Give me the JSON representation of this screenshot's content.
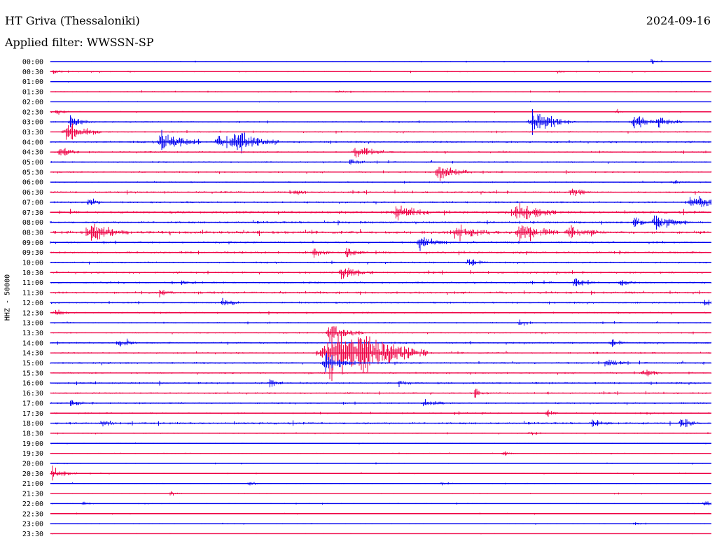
{
  "header": {
    "station": "HT Griva (Thessaloniki)",
    "date": "2024-09-16",
    "filter": "Applied filter: WWSSN-SP"
  },
  "chart_data": {
    "type": "line",
    "title": "HT Griva (Thessaloniki)",
    "subtitle": "Applied filter: WWSSN-SP",
    "ylabel": "HHZ - 50000",
    "xlabel": "",
    "colors": {
      "blue": "#0000ee",
      "red": "#ee0044"
    },
    "rows": [
      {
        "label": "00:00",
        "color": "blue",
        "activity": 0.3,
        "events": [
          [
            930,
            4
          ]
        ]
      },
      {
        "label": "00:30",
        "color": "red",
        "activity": 0.4,
        "events": [
          [
            75,
            4
          ],
          [
            795,
            3
          ]
        ]
      },
      {
        "label": "01:00",
        "color": "blue",
        "activity": 0.2,
        "events": []
      },
      {
        "label": "01:30",
        "color": "red",
        "activity": 0.4,
        "events": [
          [
            480,
            3
          ]
        ]
      },
      {
        "label": "02:00",
        "color": "blue",
        "activity": 0.2,
        "events": []
      },
      {
        "label": "02:30",
        "color": "red",
        "activity": 0.3,
        "events": [
          [
            80,
            6
          ],
          [
            880,
            4
          ]
        ]
      },
      {
        "label": "03:00",
        "color": "blue",
        "activity": 0.5,
        "events": [
          [
            100,
            10
          ],
          [
            760,
            18
          ],
          [
            905,
            12
          ],
          [
            940,
            10
          ]
        ]
      },
      {
        "label": "03:30",
        "color": "red",
        "activity": 0.5,
        "events": [
          [
            95,
            14
          ]
        ]
      },
      {
        "label": "04:00",
        "color": "blue",
        "activity": 0.7,
        "events": [
          [
            230,
            16
          ],
          [
            335,
            18
          ],
          [
            310,
            12
          ]
        ]
      },
      {
        "label": "04:30",
        "color": "red",
        "activity": 0.6,
        "events": [
          [
            85,
            8
          ],
          [
            508,
            12
          ]
        ]
      },
      {
        "label": "05:00",
        "color": "blue",
        "activity": 0.6,
        "events": [
          [
            500,
            6
          ]
        ]
      },
      {
        "label": "05:30",
        "color": "red",
        "activity": 0.6,
        "events": [
          [
            625,
            14
          ]
        ]
      },
      {
        "label": "06:00",
        "color": "blue",
        "activity": 0.5,
        "events": [
          [
            960,
            5
          ]
        ]
      },
      {
        "label": "06:30",
        "color": "red",
        "activity": 0.7,
        "events": [
          [
            415,
            7
          ],
          [
            815,
            8
          ]
        ]
      },
      {
        "label": "07:00",
        "color": "blue",
        "activity": 0.7,
        "events": [
          [
            125,
            6
          ],
          [
            985,
            14
          ]
        ]
      },
      {
        "label": "07:30",
        "color": "red",
        "activity": 0.9,
        "events": [
          [
            565,
            14
          ],
          [
            738,
            16
          ]
        ]
      },
      {
        "label": "08:00",
        "color": "blue",
        "activity": 0.8,
        "events": [
          [
            935,
            14
          ],
          [
            905,
            8
          ]
        ]
      },
      {
        "label": "08:30",
        "color": "red",
        "activity": 1.0,
        "events": [
          [
            128,
            16
          ],
          [
            650,
            14
          ],
          [
            742,
            16
          ],
          [
            812,
            12
          ]
        ]
      },
      {
        "label": "09:00",
        "color": "blue",
        "activity": 0.7,
        "events": [
          [
            598,
            12
          ]
        ]
      },
      {
        "label": "09:30",
        "color": "red",
        "activity": 0.8,
        "events": [
          [
            448,
            7
          ],
          [
            495,
            8
          ]
        ]
      },
      {
        "label": "10:00",
        "color": "blue",
        "activity": 0.6,
        "events": [
          [
            668,
            8
          ]
        ]
      },
      {
        "label": "10:30",
        "color": "red",
        "activity": 0.7,
        "events": [
          [
            488,
            12
          ]
        ]
      },
      {
        "label": "11:00",
        "color": "blue",
        "activity": 0.7,
        "events": [
          [
            258,
            5
          ],
          [
            820,
            8
          ],
          [
            885,
            6
          ]
        ]
      },
      {
        "label": "11:30",
        "color": "red",
        "activity": 0.8,
        "events": [
          [
            228,
            7
          ]
        ]
      },
      {
        "label": "12:00",
        "color": "blue",
        "activity": 0.6,
        "events": [
          [
            318,
            8
          ],
          [
            1005,
            6
          ]
        ]
      },
      {
        "label": "12:30",
        "color": "red",
        "activity": 0.6,
        "events": [
          [
            78,
            6
          ]
        ]
      },
      {
        "label": "13:00",
        "color": "blue",
        "activity": 0.5,
        "events": [
          [
            742,
            6
          ]
        ]
      },
      {
        "label": "13:30",
        "color": "red",
        "activity": 0.5,
        "events": [
          [
            470,
            14
          ]
        ]
      },
      {
        "label": "14:00",
        "color": "blue",
        "activity": 0.6,
        "events": [
          [
            168,
            8
          ],
          [
            872,
            7
          ]
        ]
      },
      {
        "label": "14:30",
        "color": "red",
        "activity": 0.6,
        "events": [
          [
            470,
            40
          ],
          [
            515,
            18
          ]
        ]
      },
      {
        "label": "15:00",
        "color": "blue",
        "activity": 0.7,
        "events": [
          [
            465,
            14
          ],
          [
            865,
            8
          ]
        ]
      },
      {
        "label": "15:30",
        "color": "red",
        "activity": 0.6,
        "events": [
          [
            918,
            8
          ]
        ]
      },
      {
        "label": "16:00",
        "color": "blue",
        "activity": 0.7,
        "events": [
          [
            385,
            6
          ],
          [
            570,
            6
          ]
        ]
      },
      {
        "label": "16:30",
        "color": "red",
        "activity": 0.6,
        "events": [
          [
            678,
            6
          ]
        ]
      },
      {
        "label": "17:00",
        "color": "blue",
        "activity": 0.6,
        "events": [
          [
            605,
            8
          ],
          [
            102,
            6
          ]
        ]
      },
      {
        "label": "17:30",
        "color": "red",
        "activity": 0.6,
        "events": [
          [
            780,
            5
          ]
        ]
      },
      {
        "label": "18:00",
        "color": "blue",
        "activity": 0.8,
        "events": [
          [
            145,
            6
          ],
          [
            845,
            8
          ],
          [
            972,
            8
          ]
        ]
      },
      {
        "label": "18:30",
        "color": "red",
        "activity": 0.4,
        "events": [
          [
            755,
            5
          ]
        ]
      },
      {
        "label": "19:00",
        "color": "blue",
        "activity": 0.3,
        "events": []
      },
      {
        "label": "19:30",
        "color": "red",
        "activity": 0.4,
        "events": [
          [
            718,
            4
          ]
        ]
      },
      {
        "label": "20:00",
        "color": "blue",
        "activity": 0.3,
        "events": []
      },
      {
        "label": "20:30",
        "color": "red",
        "activity": 0.3,
        "events": [
          [
            75,
            10
          ]
        ]
      },
      {
        "label": "21:00",
        "color": "blue",
        "activity": 0.3,
        "events": [
          [
            355,
            5
          ],
          [
            630,
            3
          ]
        ]
      },
      {
        "label": "21:30",
        "color": "red",
        "activity": 0.3,
        "events": [
          [
            243,
            4
          ]
        ]
      },
      {
        "label": "22:00",
        "color": "blue",
        "activity": 0.3,
        "events": [
          [
            118,
            3
          ],
          [
            1005,
            6
          ]
        ]
      },
      {
        "label": "22:30",
        "color": "red",
        "activity": 0.3,
        "events": []
      },
      {
        "label": "23:00",
        "color": "blue",
        "activity": 0.3,
        "events": [
          [
            905,
            3
          ]
        ]
      },
      {
        "label": "23:30",
        "color": "red",
        "activity": 0.2,
        "events": []
      }
    ]
  }
}
